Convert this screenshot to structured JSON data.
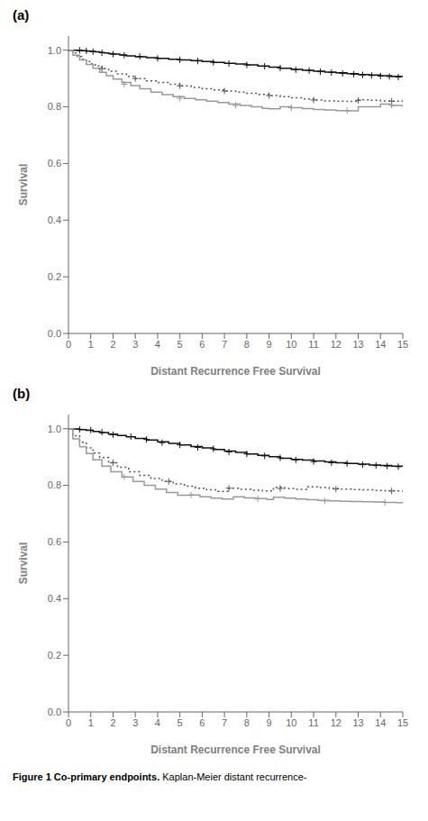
{
  "chart_data": [
    {
      "type": "line",
      "title": "(a)",
      "xlabel": "Distant Recurrence Free Survival",
      "ylabel": "Survival",
      "xlim": [
        0,
        15
      ],
      "ylim": [
        0.0,
        1.05
      ],
      "xticks": [
        0,
        1,
        2,
        3,
        4,
        5,
        6,
        7,
        8,
        9,
        10,
        11,
        12,
        13,
        14,
        15
      ],
      "yticks": [
        {
          "value": 0.0,
          "label": "0.0"
        },
        0.2,
        0.4,
        0.6,
        0.8,
        {
          "value": 1.0,
          "label": "1.0"
        }
      ],
      "grid": false,
      "series": [
        {
          "type": "step",
          "color": "#111111",
          "line_style": "solid",
          "x": [
            0,
            0.2,
            0.4,
            0.6,
            0.8,
            1.0,
            1.2,
            1.4,
            1.6,
            1.8,
            2.0,
            2.3,
            2.6,
            3.0,
            3.5,
            4.0,
            4.5,
            5.0,
            5.5,
            6.0,
            6.5,
            7.0,
            7.5,
            8.0,
            8.5,
            9.0,
            9.5,
            10.0,
            10.5,
            11.0,
            11.5,
            12.0,
            12.5,
            13.0,
            13.5,
            14.0,
            14.5,
            15.0
          ],
          "values": [
            1.0,
            1.0,
            0.999,
            0.998,
            0.997,
            0.996,
            0.994,
            0.992,
            0.99,
            0.988,
            0.986,
            0.983,
            0.98,
            0.977,
            0.974,
            0.971,
            0.968,
            0.966,
            0.963,
            0.96,
            0.957,
            0.954,
            0.951,
            0.948,
            0.944,
            0.94,
            0.936,
            0.932,
            0.929,
            0.926,
            0.923,
            0.92,
            0.917,
            0.914,
            0.912,
            0.91,
            0.908,
            0.905
          ]
        },
        {
          "type": "scatter",
          "marker": "plus",
          "color": "#111111",
          "x": [
            0.5,
            0.8,
            1.1,
            1.5,
            2.0,
            2.5,
            3.2,
            4.0,
            5.0,
            5.8,
            6.5,
            7.2,
            8.0,
            8.8,
            9.5,
            10.2,
            10.8,
            11.3,
            11.8,
            12.3,
            12.8,
            13.2,
            13.6,
            14.0,
            14.4,
            14.8
          ],
          "values": [
            1.0,
            0.998,
            0.995,
            0.991,
            0.986,
            0.982,
            0.978,
            0.971,
            0.966,
            0.962,
            0.957,
            0.953,
            0.948,
            0.943,
            0.937,
            0.931,
            0.928,
            0.924,
            0.921,
            0.918,
            0.915,
            0.913,
            0.911,
            0.909,
            0.907,
            0.905
          ]
        },
        {
          "type": "step",
          "color": "#555555",
          "line_style": "dotted",
          "x": [
            0,
            0.2,
            0.4,
            0.6,
            0.8,
            1.0,
            1.2,
            1.5,
            1.8,
            2.2,
            2.6,
            3.0,
            3.5,
            4.0,
            4.5,
            5.0,
            5.5,
            6.0,
            6.5,
            7.0,
            7.5,
            8.0,
            8.5,
            9.0,
            9.5,
            10.0,
            10.5,
            11.0,
            11.5,
            12.0,
            12.5,
            13.0,
            13.5,
            14.0,
            14.5,
            15.0
          ],
          "values": [
            1.0,
            0.99,
            0.978,
            0.968,
            0.96,
            0.952,
            0.944,
            0.935,
            0.926,
            0.916,
            0.908,
            0.9,
            0.892,
            0.886,
            0.88,
            0.874,
            0.869,
            0.864,
            0.86,
            0.856,
            0.852,
            0.848,
            0.844,
            0.84,
            0.836,
            0.832,
            0.828,
            0.824,
            0.821,
            0.82,
            0.819,
            0.825,
            0.823,
            0.821,
            0.82,
            0.818
          ]
        },
        {
          "type": "scatter",
          "marker": "plus",
          "color": "#555555",
          "x": [
            1.5,
            3.0,
            5.0,
            7.0,
            9.0,
            11.0,
            13.0,
            14.5
          ],
          "values": [
            0.935,
            0.9,
            0.874,
            0.856,
            0.84,
            0.824,
            0.823,
            0.82
          ]
        },
        {
          "type": "step",
          "color": "#999999",
          "line_style": "solid",
          "x": [
            0,
            0.2,
            0.5,
            0.8,
            1.1,
            1.4,
            1.7,
            2.0,
            2.4,
            2.8,
            3.2,
            3.7,
            4.2,
            4.7,
            5.2,
            5.7,
            6.2,
            6.7,
            7.2,
            7.7,
            8.2,
            8.7,
            9.0,
            9.5,
            10.0,
            10.5,
            11.0,
            11.5,
            12.0,
            12.5,
            13.0,
            13.5,
            14.0,
            14.5,
            15.0
          ],
          "values": [
            1.0,
            0.982,
            0.966,
            0.95,
            0.936,
            0.922,
            0.91,
            0.898,
            0.886,
            0.875,
            0.864,
            0.852,
            0.843,
            0.836,
            0.83,
            0.825,
            0.82,
            0.815,
            0.81,
            0.805,
            0.8,
            0.795,
            0.793,
            0.8,
            0.797,
            0.794,
            0.791,
            0.789,
            0.787,
            0.786,
            0.8,
            0.8,
            0.81,
            0.805,
            0.8
          ]
        },
        {
          "type": "scatter",
          "marker": "plus",
          "color": "#999999",
          "x": [
            2.5,
            5.0,
            7.5,
            10.0,
            12.5,
            14.5
          ],
          "values": [
            0.88,
            0.83,
            0.805,
            0.797,
            0.787,
            0.805
          ]
        }
      ]
    },
    {
      "type": "line",
      "title": "(b)",
      "xlabel": "Distant Recurrence Free Survival",
      "ylabel": "Survival",
      "xlim": [
        0,
        15
      ],
      "ylim": [
        0.0,
        1.05
      ],
      "xticks": [
        0,
        1,
        2,
        3,
        4,
        5,
        6,
        7,
        8,
        9,
        10,
        11,
        12,
        13,
        14,
        15
      ],
      "yticks": [
        {
          "value": 0.0,
          "label": "0.0"
        },
        0.2,
        0.4,
        0.6,
        0.8,
        {
          "value": 1.0,
          "label": "1.0"
        }
      ],
      "grid": false,
      "annotations": [
        "Figure 1 Co-primary endpoints.",
        "Kaplan-Meier distant recurrence-"
      ],
      "series": [
        {
          "type": "step",
          "color": "#111111",
          "line_style": "solid",
          "x": [
            0,
            0.2,
            0.5,
            0.8,
            1.1,
            1.4,
            1.8,
            2.2,
            2.6,
            3.0,
            3.5,
            4.0,
            4.5,
            5.0,
            5.5,
            6.0,
            6.5,
            7.0,
            7.5,
            8.0,
            8.5,
            9.0,
            9.5,
            10.0,
            10.5,
            11.0,
            11.5,
            12.0,
            12.5,
            13.0,
            13.5,
            14.0,
            14.5,
            15.0
          ],
          "values": [
            1.0,
            0.999,
            0.997,
            0.994,
            0.99,
            0.986,
            0.981,
            0.976,
            0.971,
            0.966,
            0.96,
            0.954,
            0.948,
            0.943,
            0.937,
            0.932,
            0.927,
            0.921,
            0.916,
            0.911,
            0.906,
            0.901,
            0.896,
            0.892,
            0.889,
            0.886,
            0.883,
            0.88,
            0.877,
            0.875,
            0.872,
            0.87,
            0.868,
            0.866
          ]
        },
        {
          "type": "scatter",
          "marker": "plus",
          "color": "#111111",
          "x": [
            0.5,
            1.0,
            1.5,
            2.0,
            2.8,
            3.5,
            4.2,
            5.0,
            5.8,
            6.5,
            7.2,
            8.0,
            8.8,
            9.5,
            10.2,
            11.0,
            11.8,
            12.5,
            13.2,
            13.8,
            14.3,
            14.8
          ],
          "values": [
            0.998,
            0.995,
            0.988,
            0.979,
            0.972,
            0.962,
            0.951,
            0.943,
            0.934,
            0.929,
            0.918,
            0.911,
            0.904,
            0.897,
            0.89,
            0.884,
            0.88,
            0.877,
            0.873,
            0.87,
            0.868,
            0.866
          ]
        },
        {
          "type": "step",
          "color": "#555555",
          "line_style": "dotted",
          "x": [
            0,
            0.2,
            0.5,
            0.8,
            1.1,
            1.4,
            1.8,
            2.2,
            2.7,
            3.2,
            3.7,
            4.2,
            4.7,
            5.2,
            5.7,
            6.2,
            6.7,
            7.2,
            7.7,
            8.2,
            8.7,
            9.2,
            9.7,
            10.2,
            10.7,
            11.2,
            11.7,
            12.2,
            12.7,
            13.2,
            13.7,
            14.2,
            14.7,
            15.0
          ],
          "values": [
            1.0,
            0.975,
            0.952,
            0.932,
            0.914,
            0.898,
            0.88,
            0.864,
            0.848,
            0.835,
            0.824,
            0.814,
            0.805,
            0.797,
            0.79,
            0.784,
            0.779,
            0.79,
            0.786,
            0.783,
            0.78,
            0.793,
            0.789,
            0.786,
            0.795,
            0.792,
            0.789,
            0.787,
            0.785,
            0.784,
            0.782,
            0.781,
            0.78,
            0.778
          ]
        },
        {
          "type": "scatter",
          "marker": "plus",
          "color": "#555555",
          "x": [
            2.0,
            4.5,
            7.2,
            9.5,
            12.0,
            14.5
          ],
          "values": [
            0.88,
            0.814,
            0.79,
            0.789,
            0.787,
            0.78
          ]
        },
        {
          "type": "step",
          "color": "#999999",
          "line_style": "solid",
          "x": [
            0,
            0.2,
            0.5,
            0.8,
            1.1,
            1.5,
            1.9,
            2.4,
            2.9,
            3.4,
            3.9,
            4.4,
            4.9,
            5.4,
            5.9,
            6.4,
            6.9,
            7.4,
            7.9,
            8.4,
            8.9,
            9.2,
            9.7,
            10.2,
            10.7,
            11.2,
            11.7,
            12.2,
            12.7,
            13.2,
            13.7,
            14.2,
            14.7,
            15.0
          ],
          "values": [
            1.0,
            0.964,
            0.936,
            0.912,
            0.89,
            0.868,
            0.848,
            0.83,
            0.814,
            0.8,
            0.787,
            0.775,
            0.765,
            0.766,
            0.76,
            0.755,
            0.752,
            0.76,
            0.756,
            0.753,
            0.75,
            0.758,
            0.755,
            0.752,
            0.749,
            0.747,
            0.745,
            0.744,
            0.743,
            0.742,
            0.741,
            0.74,
            0.739,
            0.738
          ]
        },
        {
          "type": "scatter",
          "marker": "plus",
          "color": "#999999",
          "x": [
            2.5,
            5.5,
            8.5,
            11.5,
            14.2
          ],
          "values": [
            0.83,
            0.766,
            0.753,
            0.745,
            0.74
          ]
        }
      ]
    }
  ]
}
